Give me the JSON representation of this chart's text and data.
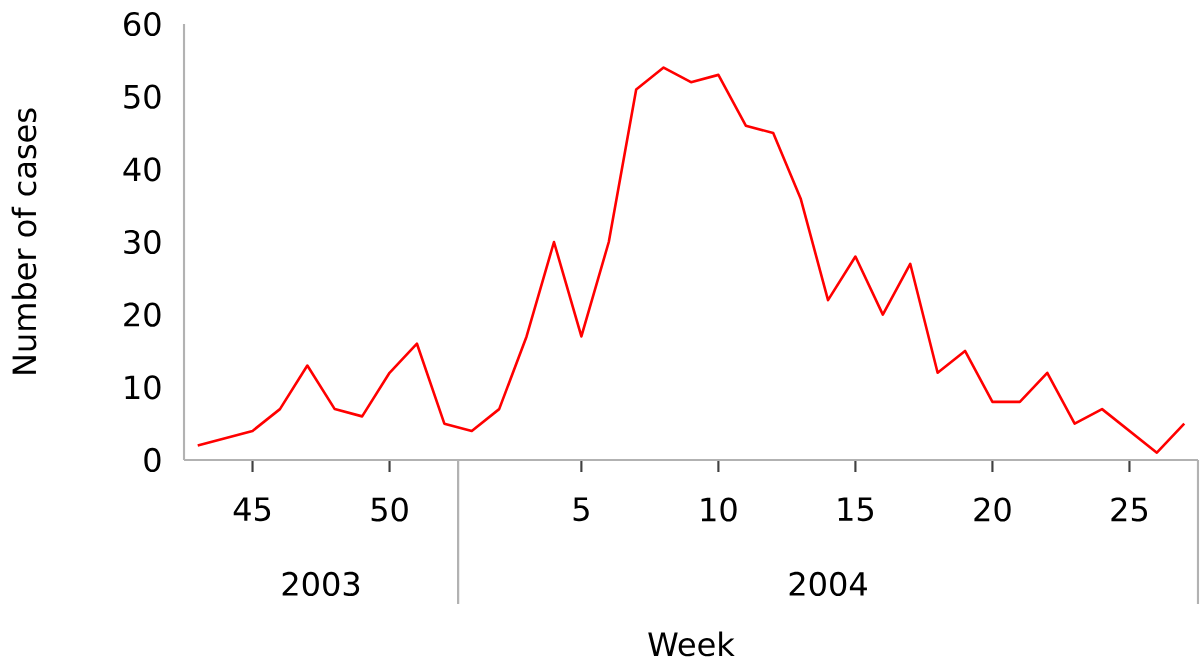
{
  "chart_data": {
    "type": "line",
    "xlabel": "Week",
    "ylabel": "Number of cases",
    "categories": [
      null,
      null,
      "45",
      null,
      null,
      null,
      null,
      "50",
      null,
      null,
      null,
      null,
      null,
      null,
      "5",
      null,
      null,
      null,
      null,
      "10",
      null,
      null,
      null,
      null,
      "15",
      null,
      null,
      null,
      null,
      "20",
      null,
      null,
      null,
      null,
      "25",
      null,
      null
    ],
    "series": [
      {
        "color": "#ff0000",
        "values": [
          2,
          3,
          4,
          7,
          13,
          7,
          6,
          12,
          16,
          5,
          4,
          7,
          17,
          30,
          17,
          30,
          51,
          54,
          52,
          53,
          46,
          45,
          36,
          22,
          28,
          20,
          27,
          12,
          15,
          8,
          8,
          12,
          5,
          7,
          4,
          1,
          5
        ]
      }
    ],
    "ylim": [
      0,
      60
    ],
    "yticks": [
      0,
      10,
      20,
      30,
      40,
      50,
      60
    ],
    "annotations": [
      "2003",
      "2004"
    ]
  }
}
